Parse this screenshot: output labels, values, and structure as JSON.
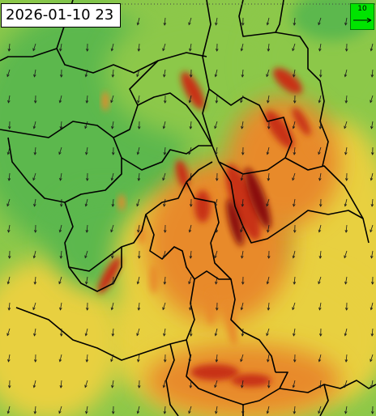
{
  "map": {
    "timestamp": "2026-01-10 23",
    "legend": {
      "reference_speed": "10",
      "arrow_icon": "wind-reference-arrow-icon",
      "background_color": "#00e400"
    },
    "field_colors": {
      "low": "#5cb84e",
      "mid_low": "#8cc84a",
      "mid": "#e8d040",
      "mid_high": "#e88a2a",
      "high": "#c83018",
      "extreme": "#8a1010"
    },
    "border_color": "#000000",
    "arrow_color": "#1a1a1a"
  }
}
